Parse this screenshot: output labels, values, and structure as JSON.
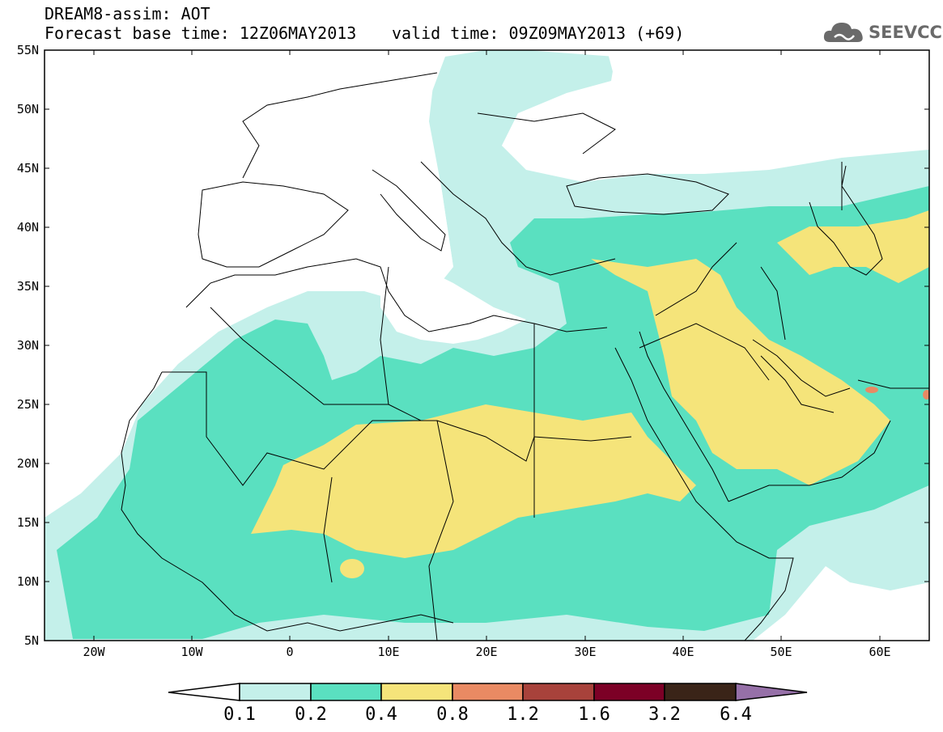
{
  "header": {
    "title": "DREAM8-assim: AOT",
    "base_time": "Forecast base time: 12Z06MAY2013",
    "valid_time": "valid time: 09Z09MAY2013 (+69)"
  },
  "logo": {
    "text": "SEEVCCC",
    "icon": "cloud-icon",
    "color": "#6a6a6a"
  },
  "map": {
    "lat_labels": [
      "55N",
      "50N",
      "45N",
      "40N",
      "35N",
      "30N",
      "25N",
      "20N",
      "15N",
      "10N",
      "5N"
    ],
    "lon_labels": [
      "20W",
      "10W",
      "0",
      "10E",
      "20E",
      "30E",
      "40E",
      "50E",
      "60E"
    ],
    "lat_range": [
      5,
      55
    ],
    "lon_range": [
      -25,
      65
    ]
  },
  "colorbar": {
    "labels": [
      "0.1",
      "0.2",
      "0.4",
      "0.8",
      "1.2",
      "1.6",
      "3.2",
      "6.4"
    ],
    "colors": [
      "#ffffff",
      "#c4f0ea",
      "#5ae0c0",
      "#f5e47a",
      "#e98a63",
      "#a8423b",
      "#7c0026",
      "#3a2418",
      "#9670a8"
    ]
  }
}
